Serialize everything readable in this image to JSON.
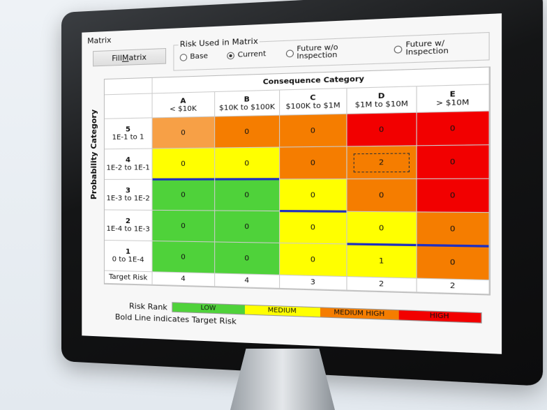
{
  "frame": {
    "title": "Matrix"
  },
  "toolbar": {
    "fill_label_pre": "Fill ",
    "fill_label_u": "M",
    "fill_label_post": "atrix"
  },
  "risk_used": {
    "legend": "Risk Used in Matrix",
    "options": [
      "Base",
      "Current",
      "Future w/o Inspection",
      "Future w/ Inspection"
    ],
    "selected": 1
  },
  "matrix": {
    "consequence_title": "Consequence Category",
    "probability_title": "Probability Category",
    "columns": [
      {
        "letter": "A",
        "range": "< $10K"
      },
      {
        "letter": "B",
        "range": "$10K to $100K"
      },
      {
        "letter": "C",
        "range": "$100K to $1M"
      },
      {
        "letter": "D",
        "range": "$1M to $10M"
      },
      {
        "letter": "E",
        "range": "> $10M"
      }
    ],
    "rows": [
      {
        "num": "5",
        "range": "1E-1 to 1",
        "values": [
          "0",
          "0",
          "0",
          "0",
          "0"
        ],
        "ranks": [
          1,
          2,
          2,
          3,
          3
        ]
      },
      {
        "num": "4",
        "range": "1E-2 to 1E-1",
        "values": [
          "0",
          "0",
          "0",
          "2",
          "0"
        ],
        "ranks": [
          1,
          1,
          2,
          2,
          3
        ]
      },
      {
        "num": "3",
        "range": "1E-3 to 1E-2",
        "values": [
          "0",
          "0",
          "0",
          "0",
          "0"
        ],
        "ranks": [
          0,
          0,
          1,
          2,
          3
        ]
      },
      {
        "num": "2",
        "range": "1E-4 to 1E-3",
        "values": [
          "0",
          "0",
          "0",
          "0",
          "0"
        ],
        "ranks": [
          0,
          0,
          1,
          1,
          2
        ]
      },
      {
        "num": "1",
        "range": "0 to 1E-4",
        "values": [
          "0",
          "0",
          "0",
          "1",
          "0"
        ],
        "ranks": [
          0,
          0,
          1,
          1,
          2
        ]
      }
    ],
    "selected_cell": [
      1,
      3
    ],
    "target_label": "Target Risk",
    "target_risk": [
      "4",
      "4",
      "3",
      "2",
      "2"
    ]
  },
  "risk_rank": {
    "label": "Risk Rank",
    "levels": [
      {
        "name": "LOW",
        "color": "#4fd23a"
      },
      {
        "name": "MEDIUM",
        "color": "#ffff00"
      },
      {
        "name": "MEDIUM HIGH",
        "color": "#f57d00"
      },
      {
        "name": "HIGH",
        "color": "#f20000"
      }
    ]
  },
  "note": "Bold Line indicates Target Risk",
  "colors": {
    "orange_light": "#f7a046",
    "target_line": "#1f2fc0"
  }
}
